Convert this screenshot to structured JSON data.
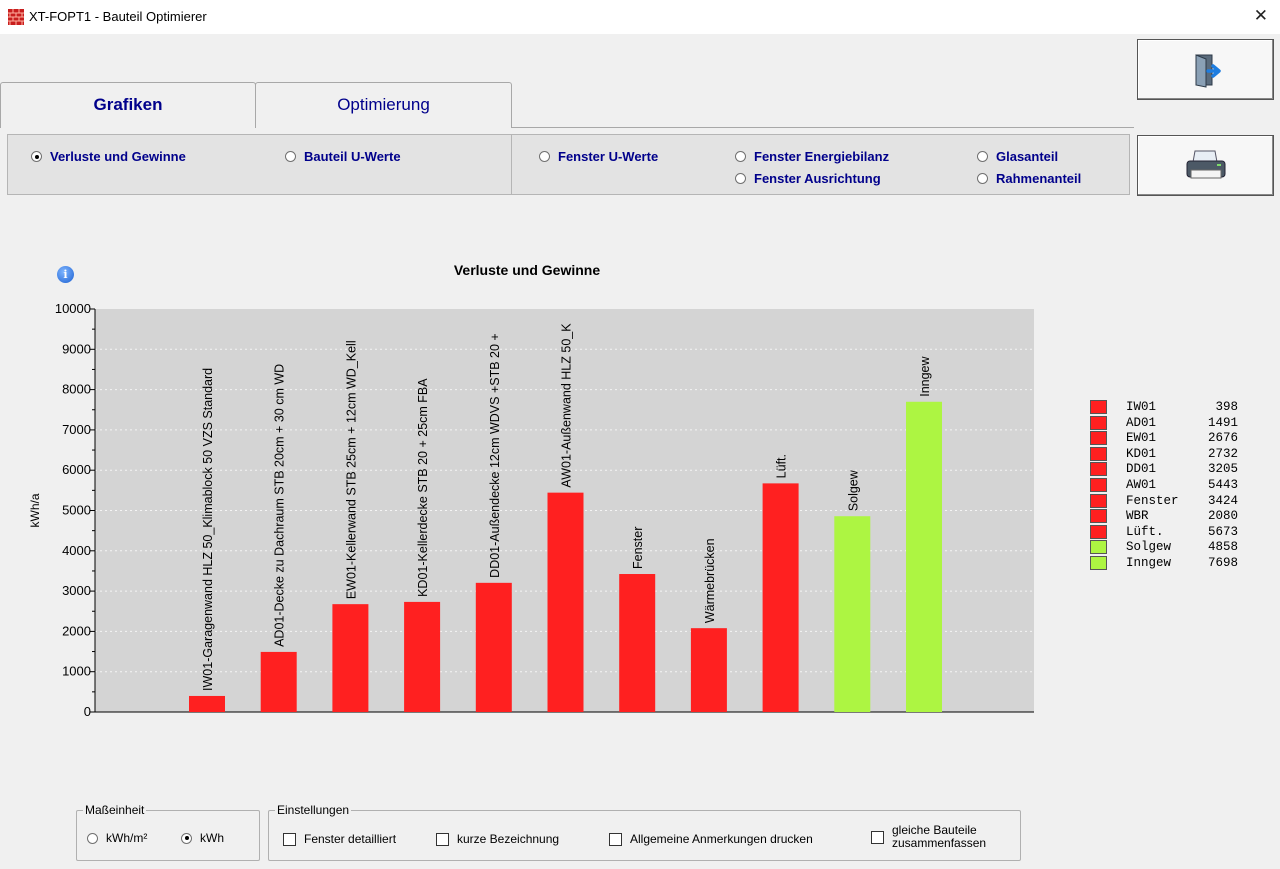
{
  "window": {
    "title": "XT-FOPT1 - Bauteil Optimierer",
    "close_symbol": "✕"
  },
  "tabs": [
    {
      "label": "Grafiken",
      "active": true
    },
    {
      "label": "Optimierung",
      "active": false
    }
  ],
  "radio_group": {
    "options": [
      {
        "label": "Verluste und Gewinne",
        "selected": true
      },
      {
        "label": "Bauteil U-Werte",
        "selected": false
      },
      {
        "label": "Fenster U-Werte",
        "selected": false
      },
      {
        "label": "Fenster Energiebilanz",
        "selected": false
      },
      {
        "label": "Fenster Ausrichtung",
        "selected": false
      },
      {
        "label": "Glasanteil",
        "selected": false
      },
      {
        "label": "Rahmenanteil",
        "selected": false
      }
    ]
  },
  "buttons": {
    "exit_icon": "exit-door-icon",
    "print_icon": "printer-icon"
  },
  "chart_data": {
    "type": "bar",
    "title": "Verluste und Gewinne",
    "ylabel": "kWh/a",
    "xlabel": "",
    "ylim": [
      0,
      10000
    ],
    "yticks": [
      0,
      1000,
      2000,
      3000,
      4000,
      5000,
      6000,
      7000,
      8000,
      9000,
      10000
    ],
    "grid": true,
    "legend_position": "right",
    "colors": {
      "loss": "#ff2020",
      "gain": "#adf542",
      "plot_bg": "#d4d4d4"
    },
    "bars": [
      {
        "label": "IW01-Garagenwand HLZ 50_Klimablock 50 VZS Standard",
        "value": 398,
        "kind": "loss"
      },
      {
        "label": "AD01-Decke zu Dachraum STB 20cm + 30 cm WD",
        "value": 1491,
        "kind": "loss"
      },
      {
        "label": "EW01-Kellerwand STB 25cm + 12cm WD_Kell",
        "value": 2676,
        "kind": "loss"
      },
      {
        "label": "KD01-Kellerdecke STB 20 + 25cm FBA",
        "value": 2732,
        "kind": "loss"
      },
      {
        "label": "DD01-Außendecke 12cm WDVS +STB 20 +",
        "value": 3205,
        "kind": "loss"
      },
      {
        "label": "AW01-Außenwand HLZ 50_K",
        "value": 5443,
        "kind": "loss"
      },
      {
        "label": "Fenster",
        "value": 3424,
        "kind": "loss"
      },
      {
        "label": "Wärmebrücken",
        "value": 2080,
        "kind": "loss"
      },
      {
        "label": "Lüft.",
        "value": 5673,
        "kind": "loss"
      },
      {
        "label": "Solgew",
        "value": 4858,
        "kind": "gain"
      },
      {
        "label": "Inngew",
        "value": 7698,
        "kind": "gain"
      }
    ],
    "legend": [
      {
        "name": "IW01",
        "value": "398",
        "kind": "loss"
      },
      {
        "name": "AD01",
        "value": "1491",
        "kind": "loss"
      },
      {
        "name": "EW01",
        "value": "2676",
        "kind": "loss"
      },
      {
        "name": "KD01",
        "value": "2732",
        "kind": "loss"
      },
      {
        "name": "DD01",
        "value": "3205",
        "kind": "loss"
      },
      {
        "name": "AW01",
        "value": "5443",
        "kind": "loss"
      },
      {
        "name": "Fenster",
        "value": "3424",
        "kind": "loss"
      },
      {
        "name": "WBR",
        "value": "2080",
        "kind": "loss"
      },
      {
        "name": "Lüft.",
        "value": "5673",
        "kind": "loss"
      },
      {
        "name": "Solgew",
        "value": "4858",
        "kind": "gain"
      },
      {
        "name": "Inngew",
        "value": "7698",
        "kind": "gain"
      }
    ]
  },
  "info_icon": "i",
  "units_group": {
    "title": "Maßeinheit",
    "options": [
      {
        "label": "kWh/m²",
        "selected": false
      },
      {
        "label": "kWh",
        "selected": true
      }
    ]
  },
  "settings_group": {
    "title": "Einstellungen",
    "checkboxes": [
      {
        "label": "Fenster detailliert",
        "checked": false
      },
      {
        "label": "kurze Bezeichnung",
        "checked": false
      },
      {
        "label": "Allgemeine Anmerkungen drucken",
        "checked": false
      },
      {
        "label_line1": "gleiche Bauteile",
        "label_line2": "zusammenfassen",
        "checked": false
      }
    ]
  }
}
